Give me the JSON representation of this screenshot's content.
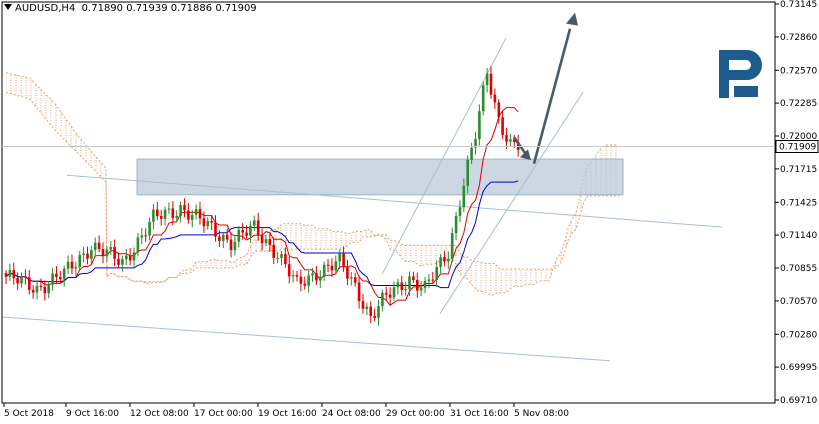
{
  "chart_data": {
    "type": "candlestick",
    "symbol": "AUDUSD",
    "timeframe": "H4",
    "ohlc_display": {
      "open": "0.71890",
      "high": "0.71939",
      "low": "0.71886",
      "close": "0.71909"
    },
    "current_price": "0.71909",
    "y_ticks": [
      "0.73145",
      "0.72860",
      "0.72570",
      "0.72285",
      "0.72000",
      "0.71715",
      "0.71425",
      "0.71140",
      "0.70855",
      "0.70570",
      "0.70280",
      "0.69995",
      "0.69710"
    ],
    "ylim": [
      0.6971,
      0.73145
    ],
    "x_ticks": [
      "5 Oct 2018",
      "9 Oct 16:00",
      "12 Oct 08:00",
      "17 Oct 00:00",
      "19 Oct 16:00",
      "24 Oct 08:00",
      "29 Oct 00:00",
      "31 Oct 16:00",
      "5 Nov 08:00"
    ],
    "colors": {
      "bull": "#2e8b2e",
      "bear": "#e00000",
      "tenkan": "#dd0000",
      "kijun": "#0000cc",
      "kumo": "#e8a070",
      "channel": "#a9bfd2",
      "zone": "#b8c7d6",
      "arrow": "#4a5968"
    },
    "indicators": [
      "candles",
      "ichimoku",
      "price channels",
      "resistance zone",
      "forecast arrows"
    ]
  }
}
